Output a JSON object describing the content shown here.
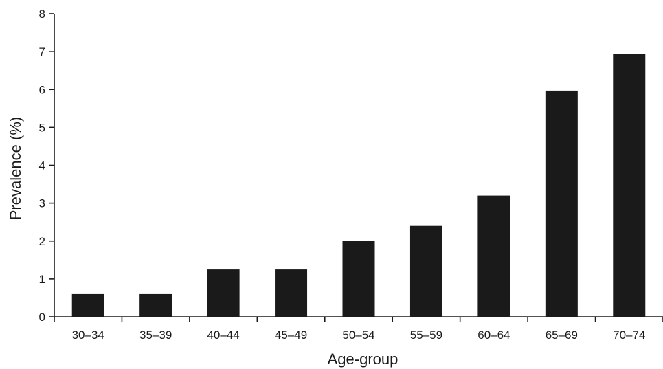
{
  "chart_data": {
    "type": "bar",
    "title": "",
    "xlabel": "Age-group",
    "ylabel": "Prevalence (%)",
    "categories": [
      "30–34",
      "35–39",
      "40–44",
      "45–49",
      "50–54",
      "55–59",
      "60–64",
      "65–69",
      "70–74"
    ],
    "values": [
      0.6,
      0.6,
      1.25,
      1.25,
      2.0,
      2.4,
      3.2,
      5.97,
      6.93
    ],
    "ylim": [
      0,
      8
    ],
    "yticks": [
      0,
      1,
      2,
      3,
      4,
      5,
      6,
      7,
      8
    ],
    "grid": false,
    "legend": "none",
    "bar_color": "#1a1a1a",
    "axis_color": "#1a1a1a"
  }
}
